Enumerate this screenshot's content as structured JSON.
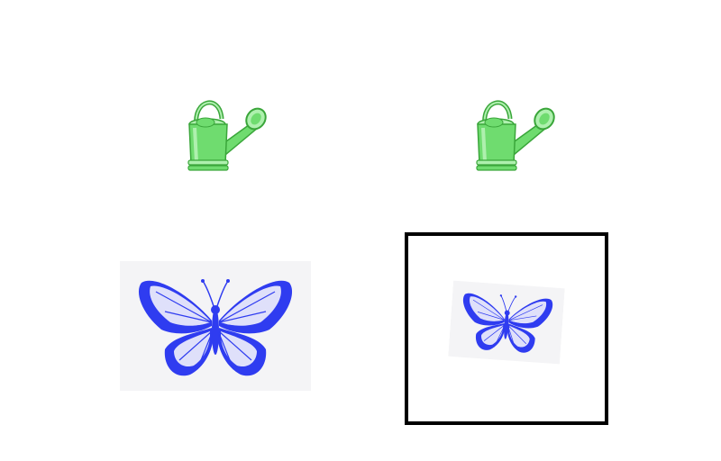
{
  "colors": {
    "can_fill": "#6fdc6f",
    "can_dark": "#3aa63a",
    "can_light": "#aef0ae",
    "butterfly_blue": "#2f3cf0",
    "butterfly_pale": "#dfe0fa",
    "frame": "#000000",
    "background": "#ffffff"
  },
  "items": [
    {
      "icon": "watering-can-icon",
      "selected": false
    },
    {
      "icon": "watering-can-icon",
      "selected": false
    },
    {
      "icon": "butterfly-icon",
      "selected": false
    },
    {
      "icon": "butterfly-icon",
      "selected": true
    }
  ]
}
